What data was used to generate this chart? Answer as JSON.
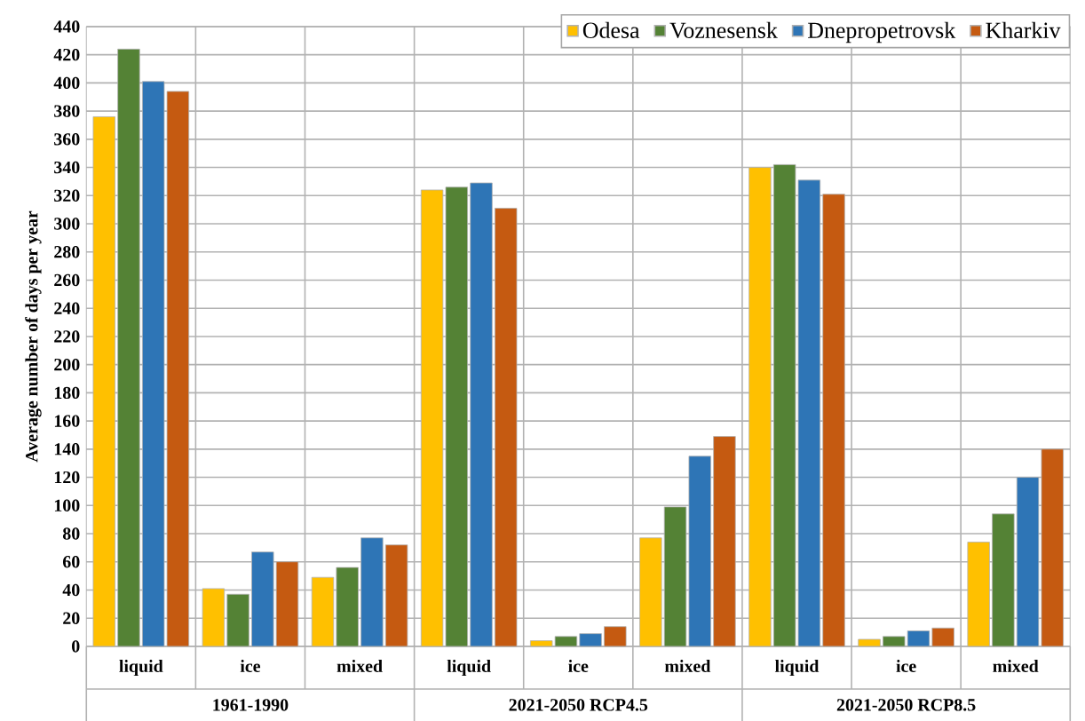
{
  "chart_data": {
    "type": "bar",
    "ylabel": "Average number of days per year",
    "categories": [
      "liquid",
      "ice",
      "mixed",
      "liquid",
      "ice",
      "mixed",
      "liquid",
      "ice",
      "mixed"
    ],
    "annotations": [
      "1961-1990",
      "2021-2050 RCP4.5",
      "2021-2050 RCP8.5"
    ],
    "series": [
      {
        "name": "Odesa",
        "color": "#ffc000",
        "values": [
          376,
          41,
          49,
          324,
          4,
          77,
          340,
          5,
          74
        ]
      },
      {
        "name": "Voznesensk",
        "color": "#548235",
        "values": [
          424,
          37,
          56,
          326,
          7,
          99,
          342,
          7,
          94
        ]
      },
      {
        "name": "Dnepropetrovsk",
        "color": "#2e75b6",
        "values": [
          401,
          67,
          77,
          329,
          9,
          135,
          331,
          11,
          120
        ]
      },
      {
        "name": "Kharkiv",
        "color": "#c55a11",
        "values": [
          394,
          60,
          72,
          311,
          14,
          149,
          321,
          13,
          140
        ]
      }
    ],
    "ylim": [
      0,
      440
    ],
    "yticks": [
      0,
      20,
      40,
      60,
      80,
      100,
      120,
      140,
      160,
      180,
      200,
      220,
      240,
      260,
      280,
      300,
      320,
      340,
      360,
      380,
      400,
      420,
      440
    ],
    "grid": true,
    "legend": "top right"
  }
}
